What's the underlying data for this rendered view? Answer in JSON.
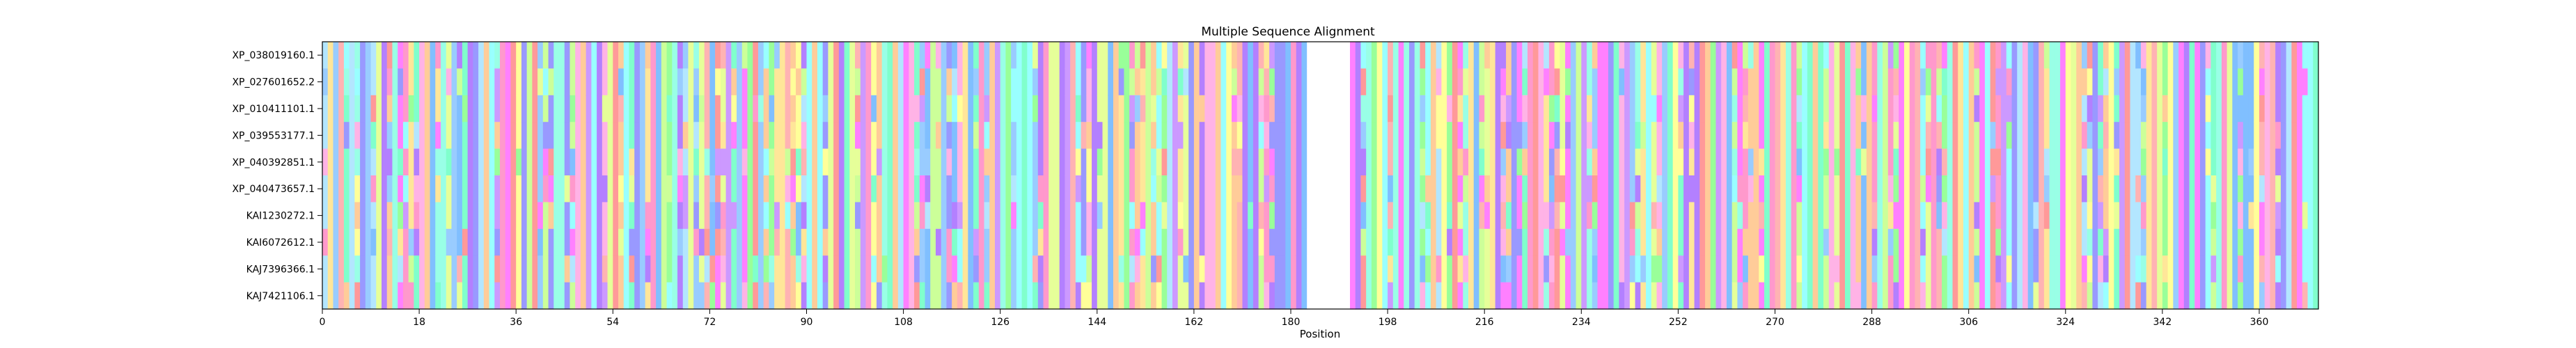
{
  "chart_data": {
    "type": "heatmap",
    "title": "Multiple Sequence Alignment",
    "xlabel": "Position",
    "ylabel": "",
    "grid": false,
    "legend": "none",
    "xlim": [
      0,
      371
    ],
    "x_ticks": [
      0,
      18,
      36,
      54,
      72,
      90,
      108,
      126,
      144,
      162,
      180,
      198,
      216,
      234,
      252,
      270,
      288,
      306,
      324,
      342,
      360
    ],
    "rows": [
      "XP_038019160.1",
      "XP_027601652.2",
      "XP_010411101.1",
      "XP_039553177.1",
      "XP_040392851.1",
      "XP_040473657.1",
      "KAI1230272.1",
      "KAI6072612.1",
      "KAJ7396366.1",
      "KAJ7421106.1"
    ],
    "gap_color": "#ffffff",
    "gaps": [
      {
        "row": 0,
        "start": 183,
        "end": 191
      },
      {
        "row": 1,
        "start": 183,
        "end": 191
      },
      {
        "row": 2,
        "start": 183,
        "end": 191
      },
      {
        "row": 3,
        "start": 183,
        "end": 191
      },
      {
        "row": 4,
        "start": 183,
        "end": 191
      },
      {
        "row": 5,
        "start": 183,
        "end": 191
      },
      {
        "row": 6,
        "start": 183,
        "end": 191
      },
      {
        "row": 7,
        "start": 183,
        "end": 191
      },
      {
        "row": 8,
        "start": 183,
        "end": 191
      },
      {
        "row": 9,
        "start": 183,
        "end": 191
      }
    ],
    "palette": [
      "#ff9999",
      "#ffb3b3",
      "#ff99cc",
      "#ffb3e6",
      "#ff80ff",
      "#cc99ff",
      "#b380ff",
      "#9999ff",
      "#99ccff",
      "#80bfff",
      "#b3e6ff",
      "#99ffff",
      "#99ffe6",
      "#80ffcc",
      "#99ff99",
      "#ccff99",
      "#e6ff99",
      "#ffff99",
      "#ffe699",
      "#ffcc99"
    ],
    "residue_seed": 20240611
  }
}
